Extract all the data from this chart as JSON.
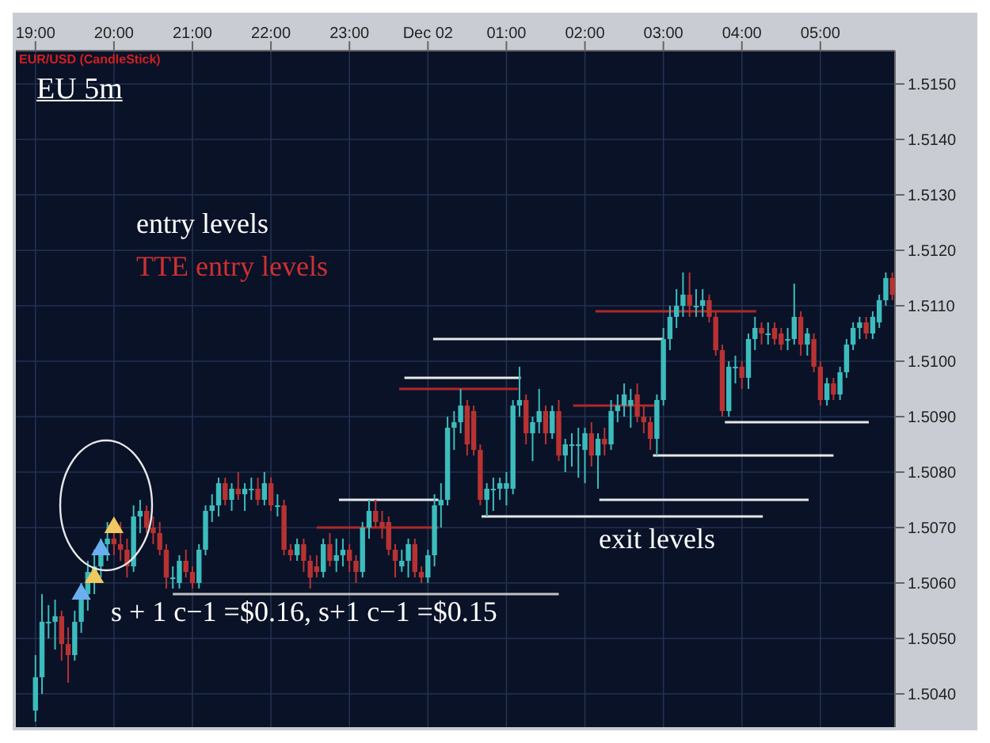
{
  "chart_data": {
    "type": "candlestick",
    "title": "EU 5m",
    "subtitle": "EUR/USD (CandleStick)",
    "annotations": [
      "entry levels",
      "TTE entry levels",
      "exit levels",
      "s + 1 c−1 =$0.16,  s+1 c−1 =$0.15"
    ],
    "x": [
      "--12-01T19:00",
      "--12-01T19:05",
      "--12-01T19:10",
      "--12-01T19:15",
      "--12-01T19:20",
      "--12-01T19:25",
      "--12-01T19:30",
      "--12-01T19:35",
      "--12-01T19:40",
      "--12-01T19:45",
      "--12-01T19:50",
      "--12-01T19:55",
      "--12-01T20:00",
      "--12-01T20:05",
      "--12-01T20:10",
      "--12-01T20:15",
      "--12-01T20:20",
      "--12-01T20:25",
      "--12-01T20:30",
      "--12-01T20:35",
      "--12-01T20:40",
      "--12-01T20:45",
      "--12-01T20:50",
      "--12-01T20:55",
      "--12-01T21:00",
      "--12-01T21:05",
      "--12-01T21:10",
      "--12-01T21:15",
      "--12-01T21:20",
      "--12-01T21:25",
      "--12-01T21:30",
      "--12-01T21:35",
      "--12-01T21:40",
      "--12-01T21:45",
      "--12-01T21:50",
      "--12-01T21:55",
      "--12-01T22:00",
      "--12-01T22:05",
      "--12-01T22:10",
      "--12-01T22:15",
      "--12-01T22:20",
      "--12-01T22:25",
      "--12-01T22:30",
      "--12-01T22:35",
      "--12-01T22:40",
      "--12-01T22:45",
      "--12-01T22:50",
      "--12-01T22:55",
      "--12-01T23:00",
      "--12-01T23:05",
      "--12-01T23:10",
      "--12-01T23:15",
      "--12-01T23:20",
      "--12-01T23:25",
      "--12-01T23:30",
      "--12-01T23:35",
      "--12-01T23:40",
      "--12-01T23:45",
      "--12-01T23:50",
      "--12-01T23:55",
      "--12-02T00:00",
      "--12-02T00:05",
      "--12-02T00:10",
      "--12-02T00:15",
      "--12-02T00:20",
      "--12-02T00:25",
      "--12-02T00:30",
      "--12-02T00:35",
      "--12-02T00:40",
      "--12-02T00:45",
      "--12-02T00:50",
      "--12-02T00:55",
      "--12-02T01:00",
      "--12-02T01:05",
      "--12-02T01:10",
      "--12-02T01:15",
      "--12-02T01:20",
      "--12-02T01:25",
      "--12-02T01:30",
      "--12-02T01:35",
      "--12-02T01:40",
      "--12-02T01:45",
      "--12-02T01:50",
      "--12-02T01:55",
      "--12-02T02:00",
      "--12-02T02:05",
      "--12-02T02:10",
      "--12-02T02:15",
      "--12-02T02:20",
      "--12-02T02:25",
      "--12-02T02:30",
      "--12-02T02:35",
      "--12-02T02:40",
      "--12-02T02:45",
      "--12-02T02:50",
      "--12-02T02:55",
      "--12-02T03:00",
      "--12-02T03:05",
      "--12-02T03:10",
      "--12-02T03:15",
      "--12-02T03:20",
      "--12-02T03:25",
      "--12-02T03:30",
      "--12-02T03:35",
      "--12-02T03:40",
      "--12-02T03:45",
      "--12-02T03:50",
      "--12-02T03:55",
      "--12-02T04:00",
      "--12-02T04:05",
      "--12-02T04:10",
      "--12-02T04:15",
      "--12-02T04:20",
      "--12-02T04:25",
      "--12-02T04:30",
      "--12-02T04:35",
      "--12-02T04:40",
      "--12-02T04:45",
      "--12-02T04:50",
      "--12-02T04:55",
      "--12-02T05:00",
      "--12-02T05:05",
      "--12-02T05:10",
      "--12-02T05:15",
      "--12-02T05:20",
      "--12-02T05:25",
      "--12-02T05:30",
      "--12-02T05:35",
      "--12-02T05:40",
      "--12-02T05:45",
      "--12-02T05:50",
      "--12-02T05:55"
    ],
    "ohlc": [
      [
        1.5037,
        1.5047,
        1.5035,
        1.5043
      ],
      [
        1.5043,
        1.5058,
        1.504,
        1.5053
      ],
      [
        1.5053,
        1.5056,
        1.505,
        1.5053
      ],
      [
        1.5053,
        1.5057,
        1.5048,
        1.5054
      ],
      [
        1.5054,
        1.5055,
        1.5046,
        1.5049
      ],
      [
        1.5049,
        1.5052,
        1.5042,
        1.5047
      ],
      [
        1.5047,
        1.5055,
        1.5046,
        1.5053
      ],
      [
        1.5053,
        1.506,
        1.5051,
        1.5058
      ],
      [
        1.5058,
        1.5064,
        1.5055,
        1.5062
      ],
      [
        1.5062,
        1.5066,
        1.5058,
        1.5063
      ],
      [
        1.5063,
        1.5068,
        1.5061,
        1.5067
      ],
      [
        1.5067,
        1.5071,
        1.5064,
        1.5068
      ],
      [
        1.5068,
        1.507,
        1.5065,
        1.5067
      ],
      [
        1.5067,
        1.5071,
        1.5064,
        1.5066
      ],
      [
        1.5066,
        1.5068,
        1.5061,
        1.5063
      ],
      [
        1.5063,
        1.5074,
        1.5062,
        1.5072
      ],
      [
        1.5072,
        1.5075,
        1.5069,
        1.5073
      ],
      [
        1.5073,
        1.5074,
        1.5069,
        1.507
      ],
      [
        1.507,
        1.5072,
        1.5067,
        1.5069
      ],
      [
        1.5069,
        1.5071,
        1.5065,
        1.5066
      ],
      [
        1.5066,
        1.5067,
        1.5059,
        1.5061
      ],
      [
        1.5061,
        1.5063,
        1.5059,
        1.5061
      ],
      [
        1.506,
        1.5065,
        1.5059,
        1.5064
      ],
      [
        1.5064,
        1.5066,
        1.5061,
        1.5062
      ],
      [
        1.5062,
        1.5063,
        1.5059,
        1.506
      ],
      [
        1.506,
        1.5067,
        1.5059,
        1.5066
      ],
      [
        1.5066,
        1.5074,
        1.5065,
        1.5073
      ],
      [
        1.5073,
        1.5076,
        1.5071,
        1.5074
      ],
      [
        1.5074,
        1.5079,
        1.5072,
        1.5078
      ],
      [
        1.5078,
        1.5079,
        1.5074,
        1.5075
      ],
      [
        1.5075,
        1.5078,
        1.5073,
        1.5077
      ],
      [
        1.5077,
        1.508,
        1.5075,
        1.5076
      ],
      [
        1.5076,
        1.5078,
        1.5073,
        1.5077
      ],
      [
        1.5077,
        1.5079,
        1.5075,
        1.5077
      ],
      [
        1.5077,
        1.5079,
        1.5074,
        1.5075
      ],
      [
        1.5075,
        1.508,
        1.5074,
        1.5078
      ],
      [
        1.5078,
        1.5079,
        1.5073,
        1.5074
      ],
      [
        1.5074,
        1.5076,
        1.5072,
        1.5074
      ],
      [
        1.5074,
        1.5075,
        1.5065,
        1.5066
      ],
      [
        1.5066,
        1.5067,
        1.5064,
        1.5065
      ],
      [
        1.5065,
        1.5068,
        1.5064,
        1.5067
      ],
      [
        1.5067,
        1.5068,
        1.5062,
        1.5064
      ],
      [
        1.5064,
        1.5065,
        1.5059,
        1.5061
      ],
      [
        1.5063,
        1.5065,
        1.5061,
        1.5062
      ],
      [
        1.5062,
        1.5068,
        1.5061,
        1.5067
      ],
      [
        1.5067,
        1.5069,
        1.5063,
        1.5064
      ],
      [
        1.5064,
        1.5068,
        1.5062,
        1.5065
      ],
      [
        1.5065,
        1.5068,
        1.5063,
        1.5066
      ],
      [
        1.5066,
        1.5067,
        1.5062,
        1.5064
      ],
      [
        1.5064,
        1.5065,
        1.506,
        1.5062
      ],
      [
        1.5062,
        1.5071,
        1.5061,
        1.507
      ],
      [
        1.507,
        1.5075,
        1.5068,
        1.5073
      ],
      [
        1.5073,
        1.5075,
        1.507,
        1.5071
      ],
      [
        1.5071,
        1.5073,
        1.5068,
        1.507
      ],
      [
        1.5071,
        1.5072,
        1.5065,
        1.5066
      ],
      [
        1.5066,
        1.5067,
        1.5061,
        1.5064
      ],
      [
        1.5063,
        1.5066,
        1.5062,
        1.5064
      ],
      [
        1.5064,
        1.5068,
        1.5061,
        1.5067
      ],
      [
        1.5067,
        1.5068,
        1.5061,
        1.5062
      ],
      [
        1.5062,
        1.5063,
        1.506,
        1.5061
      ],
      [
        1.5061,
        1.5066,
        1.506,
        1.5065
      ],
      [
        1.5065,
        1.5076,
        1.5063,
        1.5074
      ],
      [
        1.5074,
        1.5078,
        1.507,
        1.5075
      ],
      [
        1.5075,
        1.509,
        1.5074,
        1.5088
      ],
      [
        1.5088,
        1.5091,
        1.5084,
        1.5089
      ],
      [
        1.5089,
        1.5095,
        1.5087,
        1.5092
      ],
      [
        1.5092,
        1.5093,
        1.5083,
        1.5085
      ],
      [
        1.5091,
        1.5092,
        1.5083,
        1.5084
      ],
      [
        1.5084,
        1.5085,
        1.5074,
        1.5075
      ],
      [
        1.5075,
        1.5078,
        1.5072,
        1.5077
      ],
      [
        1.5077,
        1.5079,
        1.5073,
        1.5077
      ],
      [
        1.5077,
        1.5079,
        1.5075,
        1.5078
      ],
      [
        1.5077,
        1.508,
        1.5074,
        1.5078
      ],
      [
        1.5077,
        1.5093,
        1.5076,
        1.5092
      ],
      [
        1.5092,
        1.5099,
        1.509,
        1.5093
      ],
      [
        1.5093,
        1.5094,
        1.5085,
        1.5087
      ],
      [
        1.5087,
        1.509,
        1.5082,
        1.5089
      ],
      [
        1.5089,
        1.5095,
        1.5087,
        1.5091
      ],
      [
        1.5091,
        1.5092,
        1.5085,
        1.5087
      ],
      [
        1.5087,
        1.5092,
        1.5086,
        1.5091
      ],
      [
        1.5091,
        1.5093,
        1.5082,
        1.5083
      ],
      [
        1.5083,
        1.5086,
        1.508,
        1.5085
      ],
      [
        1.5085,
        1.5087,
        1.5081,
        1.5085
      ],
      [
        1.5085,
        1.5088,
        1.5079,
        1.5085
      ],
      [
        1.5084,
        1.5088,
        1.5078,
        1.5087
      ],
      [
        1.5087,
        1.5089,
        1.5081,
        1.5083
      ],
      [
        1.5083,
        1.5087,
        1.5077,
        1.5086
      ],
      [
        1.5086,
        1.5088,
        1.5083,
        1.5085
      ],
      [
        1.5085,
        1.5093,
        1.5084,
        1.5091
      ],
      [
        1.5091,
        1.5094,
        1.5089,
        1.5092
      ],
      [
        1.5092,
        1.5096,
        1.509,
        1.5094
      ],
      [
        1.5092,
        1.5095,
        1.5088,
        1.5093
      ],
      [
        1.5094,
        1.5096,
        1.5089,
        1.509
      ],
      [
        1.509,
        1.5092,
        1.5087,
        1.5089
      ],
      [
        1.5089,
        1.509,
        1.5084,
        1.5086
      ],
      [
        1.5086,
        1.5094,
        1.5083,
        1.5093
      ],
      [
        1.5093,
        1.5106,
        1.5092,
        1.5104
      ],
      [
        1.5104,
        1.511,
        1.5102,
        1.5108
      ],
      [
        1.5108,
        1.5113,
        1.5106,
        1.511
      ],
      [
        1.511,
        1.5116,
        1.5108,
        1.5112
      ],
      [
        1.5112,
        1.5116,
        1.5108,
        1.511
      ],
      [
        1.511,
        1.5113,
        1.5108,
        1.511
      ],
      [
        1.511,
        1.5113,
        1.5108,
        1.5111
      ],
      [
        1.5111,
        1.5112,
        1.5107,
        1.5108
      ],
      [
        1.5108,
        1.5109,
        1.5101,
        1.5102
      ],
      [
        1.5102,
        1.5103,
        1.509,
        1.5091
      ],
      [
        1.5091,
        1.51,
        1.509,
        1.5099
      ],
      [
        1.5099,
        1.5101,
        1.5096,
        1.5099
      ],
      [
        1.5099,
        1.51,
        1.5095,
        1.5097
      ],
      [
        1.5097,
        1.5105,
        1.5095,
        1.5104
      ],
      [
        1.5104,
        1.5108,
        1.5102,
        1.5106
      ],
      [
        1.5106,
        1.5107,
        1.5103,
        1.5105
      ],
      [
        1.5105,
        1.5107,
        1.5103,
        1.5105
      ],
      [
        1.5106,
        1.5107,
        1.5103,
        1.5104
      ],
      [
        1.5105,
        1.5106,
        1.5102,
        1.5103
      ],
      [
        1.5104,
        1.5106,
        1.5102,
        1.5104
      ],
      [
        1.5104,
        1.5114,
        1.5103,
        1.5108
      ],
      [
        1.5108,
        1.5109,
        1.5101,
        1.5103
      ],
      [
        1.5103,
        1.5106,
        1.5101,
        1.5105
      ],
      [
        1.5104,
        1.5105,
        1.5098,
        1.5099
      ],
      [
        1.5099,
        1.51,
        1.5092,
        1.5093
      ],
      [
        1.5093,
        1.5097,
        1.5092,
        1.5096
      ],
      [
        1.5096,
        1.5097,
        1.5093,
        1.5094
      ],
      [
        1.5094,
        1.5099,
        1.5093,
        1.5098
      ],
      [
        1.5098,
        1.5104,
        1.5097,
        1.5103
      ],
      [
        1.5103,
        1.5107,
        1.5102,
        1.5106
      ],
      [
        1.5106,
        1.5108,
        1.5104,
        1.5107
      ],
      [
        1.5107,
        1.5108,
        1.5104,
        1.5105
      ],
      [
        1.5105,
        1.5109,
        1.5104,
        1.5108
      ],
      [
        1.5107,
        1.5112,
        1.5106,
        1.5111
      ],
      [
        1.5111,
        1.5116,
        1.511,
        1.5115
      ],
      [
        1.5115,
        1.5116,
        1.5111,
        1.5112
      ]
    ],
    "series": [
      {
        "type": "line",
        "color": "#c0c0c0",
        "x": [
          "--12-01T20:45",
          "--12-02T01:40"
        ],
        "values": [
          1.5058,
          1.5058
        ]
      },
      {
        "type": "line",
        "color": "#e8e8e8",
        "x": [
          "--12-01T22:52",
          "--12-02T00:08"
        ],
        "values": [
          1.5075,
          1.5075
        ]
      },
      {
        "type": "line",
        "color": "#b02828",
        "x": [
          "--12-01T22:35",
          "--12-02T00:08"
        ],
        "values": [
          1.507,
          1.507
        ]
      },
      {
        "type": "line",
        "color": "#e8e8e8",
        "x": [
          "--12-02T00:04",
          "--12-02T03:00"
        ],
        "values": [
          1.5104,
          1.5104
        ]
      },
      {
        "type": "line",
        "color": "#e8e8e8",
        "x": [
          "--12-01T23:42",
          "--12-02T01:11"
        ],
        "values": [
          1.5097,
          1.5097
        ]
      },
      {
        "type": "line",
        "color": "#b02828",
        "x": [
          "--12-01T23:38",
          "--12-02T01:09"
        ],
        "values": [
          1.5095,
          1.5095
        ]
      },
      {
        "type": "line",
        "color": "#b02828",
        "x": [
          "--12-02T02:08",
          "--12-02T04:11"
        ],
        "values": [
          1.5109,
          1.5109
        ]
      },
      {
        "type": "line",
        "color": "#b02828",
        "x": [
          "--12-02T01:51",
          "--12-02T02:54"
        ],
        "values": [
          1.5092,
          1.5092
        ]
      },
      {
        "type": "line",
        "color": "#e8e8e8",
        "x": [
          "--12-02T00:41",
          "--12-02T04:16"
        ],
        "values": [
          1.5072,
          1.5072
        ]
      },
      {
        "type": "line",
        "color": "#e8e8e8",
        "x": [
          "--12-02T02:11",
          "--12-02T04:51"
        ],
        "values": [
          1.5075,
          1.5075
        ]
      },
      {
        "type": "line",
        "color": "#e8e8e8",
        "x": [
          "--12-02T02:52",
          "--12-02T05:10"
        ],
        "values": [
          1.5083,
          1.5083
        ]
      },
      {
        "type": "line",
        "color": "#e8e8e8",
        "x": [
          "--12-02T03:47",
          "--12-02T05:37"
        ],
        "values": [
          1.5089,
          1.5089
        ]
      },
      {
        "type": "scatter",
        "color": "#6ab0f0",
        "marker": "triangle",
        "x": [
          "--12-01T19:35",
          "--12-01T19:50"
        ],
        "values": [
          1.5058,
          1.5066
        ]
      },
      {
        "type": "scatter",
        "color": "#f0c860",
        "marker": "triangle",
        "x": [
          "--12-01T19:45",
          "--12-01T20:00"
        ],
        "values": [
          1.5061,
          1.507
        ]
      }
    ],
    "xlim": [
      "--12-01T18:45",
      "--12-02T05:57"
    ],
    "xticks": [
      {
        "value": "--12-01T19:00",
        "label": "19:00"
      },
      {
        "value": "--12-01T20:00",
        "label": "20:00"
      },
      {
        "value": "--12-01T21:00",
        "label": "21:00"
      },
      {
        "value": "--12-01T22:00",
        "label": "22:00"
      },
      {
        "value": "--12-01T23:00",
        "label": "23:00"
      },
      {
        "value": "--12-02T00:00",
        "label": "Dec 02"
      },
      {
        "value": "--12-02T01:00",
        "label": "01:00"
      },
      {
        "value": "--12-02T02:00",
        "label": "02:00"
      },
      {
        "value": "--12-02T03:00",
        "label": "03:00"
      },
      {
        "value": "--12-02T04:00",
        "label": "04:00"
      },
      {
        "value": "--12-02T05:00",
        "label": "05:00"
      }
    ],
    "ylim": [
      1.5034,
      1.5156
    ],
    "yticks": [
      {
        "value": 1.504,
        "label": "1.5040"
      },
      {
        "value": 1.505,
        "label": "1.5050"
      },
      {
        "value": 1.506,
        "label": "1.5060"
      },
      {
        "value": 1.507,
        "label": "1.5070"
      },
      {
        "value": 1.508,
        "label": "1.5080"
      },
      {
        "value": 1.509,
        "label": "1.5090"
      },
      {
        "value": 1.51,
        "label": "1.5100"
      },
      {
        "value": 1.511,
        "label": "1.5110"
      },
      {
        "value": 1.512,
        "label": "1.5120"
      },
      {
        "value": 1.513,
        "label": "1.5130"
      },
      {
        "value": 1.514,
        "label": "1.5140"
      },
      {
        "value": 1.515,
        "label": "1.5150"
      }
    ],
    "grid": true
  }
}
